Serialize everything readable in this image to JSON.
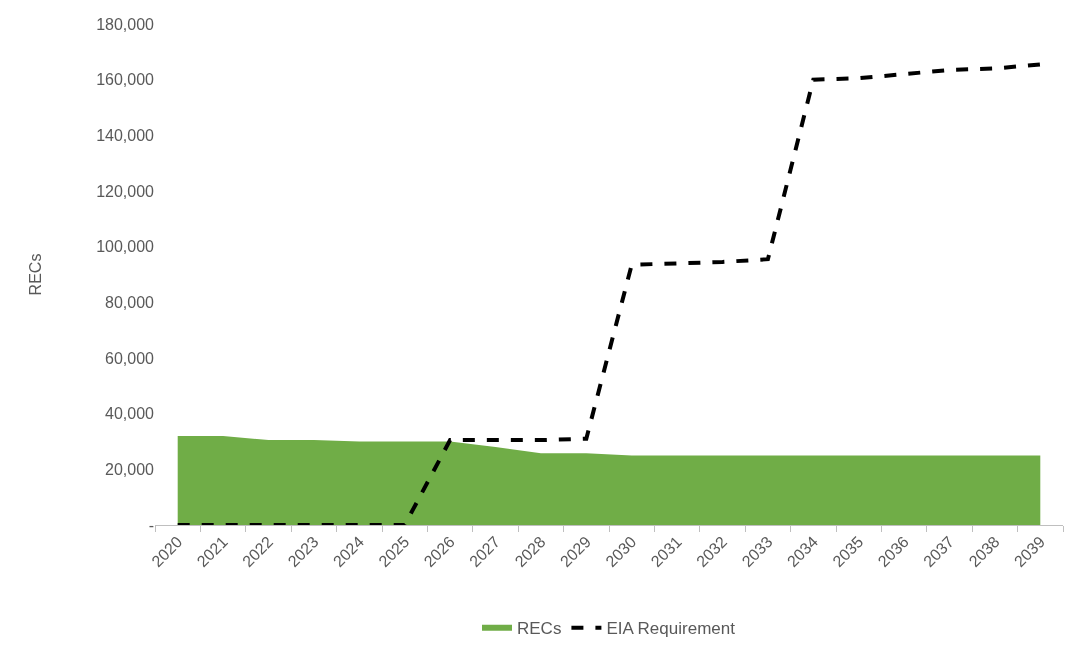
{
  "chart_data": {
    "type": "area",
    "ylabel": "RECs",
    "categories": [
      "2020",
      "2021",
      "2022",
      "2023",
      "2024",
      "2025",
      "2026",
      "2027",
      "2028",
      "2029",
      "2030",
      "2031",
      "2032",
      "2033",
      "2034",
      "2035",
      "2036",
      "2037",
      "2038",
      "2039"
    ],
    "series": [
      {
        "name": "RECs",
        "color": "#70ad47",
        "values": [
          32000,
          32000,
          30500,
          30500,
          30000,
          30000,
          30000,
          28000,
          25800,
          25800,
          25000,
          25000,
          25000,
          25000,
          25000,
          25000,
          25000,
          25000,
          25000,
          25000
        ]
      },
      {
        "name": "EIA Requirement",
        "type": "line",
        "color": "#000000",
        "line_style": "dashed",
        "values": [
          0,
          0,
          0,
          0,
          0,
          0,
          30500,
          30500,
          30500,
          31000,
          93500,
          94000,
          94500,
          95500,
          160000,
          160500,
          162000,
          163500,
          164000,
          165500
        ]
      }
    ],
    "ylim": [
      0,
      180000
    ],
    "yticks": [
      {
        "value": 0,
        "label": "-"
      },
      {
        "value": 20000,
        "label": "20,000"
      },
      {
        "value": 40000,
        "label": "40,000"
      },
      {
        "value": 60000,
        "label": "60,000"
      },
      {
        "value": 80000,
        "label": "80,000"
      },
      {
        "value": 100000,
        "label": "100,000"
      },
      {
        "value": 120000,
        "label": "120,000"
      },
      {
        "value": 140000,
        "label": "140,000"
      },
      {
        "value": 160000,
        "label": "160,000"
      },
      {
        "value": 180000,
        "label": "180,000"
      }
    ],
    "grid": false,
    "legend": "bottom",
    "marker": "none"
  }
}
